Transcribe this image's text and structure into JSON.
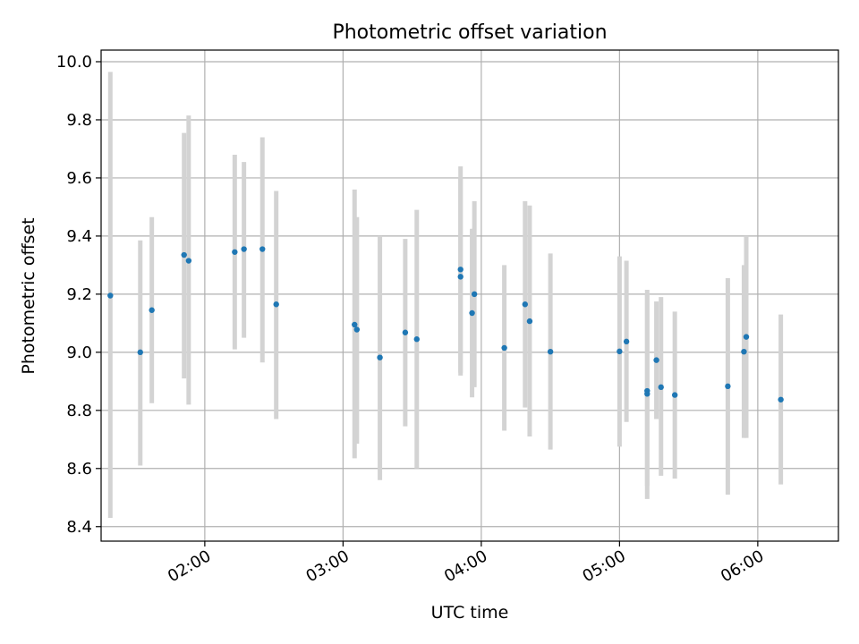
{
  "chart_data": {
    "type": "scatter",
    "title": "Photometric offset variation",
    "xlabel": "UTC time",
    "ylabel": "Photometric offset",
    "xlim": [
      "01:15",
      "06:35"
    ],
    "ylim": [
      8.35,
      10.04
    ],
    "x_ticks": [
      "02:00",
      "03:00",
      "04:00",
      "05:00",
      "06:00"
    ],
    "y_ticks": [
      "8.4",
      "8.6",
      "8.8",
      "9.0",
      "9.2",
      "9.4",
      "9.6",
      "9.8",
      "10.0"
    ],
    "grid": true,
    "point_color": "#1f77b4",
    "errorbar_color": "#d3d3d3",
    "points": [
      {
        "x": "01:19",
        "y": 9.195,
        "lo": 8.43,
        "hi": 9.965
      },
      {
        "x": "01:32",
        "y": 9.0,
        "lo": 8.61,
        "hi": 9.385
      },
      {
        "x": "01:37",
        "y": 9.145,
        "lo": 8.825,
        "hi": 9.465
      },
      {
        "x": "01:51",
        "y": 9.335,
        "lo": 8.91,
        "hi": 9.755
      },
      {
        "x": "01:53",
        "y": 9.315,
        "lo": 8.82,
        "hi": 9.815
      },
      {
        "x": "02:13",
        "y": 9.345,
        "lo": 9.01,
        "hi": 9.68
      },
      {
        "x": "02:17",
        "y": 9.355,
        "lo": 9.05,
        "hi": 9.655
      },
      {
        "x": "02:25",
        "y": 9.355,
        "lo": 8.965,
        "hi": 9.74
      },
      {
        "x": "02:31",
        "y": 9.165,
        "lo": 8.77,
        "hi": 9.555
      },
      {
        "x": "03:05",
        "y": 9.095,
        "lo": 8.635,
        "hi": 9.56
      },
      {
        "x": "03:06",
        "y": 9.078,
        "lo": 8.685,
        "hi": 9.465
      },
      {
        "x": "03:16",
        "y": 8.982,
        "lo": 8.56,
        "hi": 9.4
      },
      {
        "x": "03:27",
        "y": 9.068,
        "lo": 8.745,
        "hi": 9.39
      },
      {
        "x": "03:32",
        "y": 9.045,
        "lo": 8.6,
        "hi": 9.49
      },
      {
        "x": "03:51",
        "y": 9.285,
        "lo": 8.93,
        "hi": 9.64
      },
      {
        "x": "03:51",
        "y": 9.26,
        "lo": 8.92,
        "hi": 9.6
      },
      {
        "x": "03:56",
        "y": 9.135,
        "lo": 8.845,
        "hi": 9.425
      },
      {
        "x": "03:57",
        "y": 9.2,
        "lo": 8.88,
        "hi": 9.52
      },
      {
        "x": "04:10",
        "y": 9.015,
        "lo": 8.73,
        "hi": 9.3
      },
      {
        "x": "04:19",
        "y": 9.165,
        "lo": 8.81,
        "hi": 9.52
      },
      {
        "x": "04:21",
        "y": 9.107,
        "lo": 8.71,
        "hi": 9.505
      },
      {
        "x": "04:30",
        "y": 9.002,
        "lo": 8.665,
        "hi": 9.34
      },
      {
        "x": "05:00",
        "y": 9.003,
        "lo": 8.675,
        "hi": 9.33
      },
      {
        "x": "05:03",
        "y": 9.037,
        "lo": 8.76,
        "hi": 9.315
      },
      {
        "x": "05:12",
        "y": 8.867,
        "lo": 8.54,
        "hi": 9.215
      },
      {
        "x": "05:12",
        "y": 8.857,
        "lo": 8.495,
        "hi": 9.2
      },
      {
        "x": "05:16",
        "y": 8.973,
        "lo": 8.77,
        "hi": 9.175
      },
      {
        "x": "05:18",
        "y": 8.88,
        "lo": 8.575,
        "hi": 9.19
      },
      {
        "x": "05:24",
        "y": 8.853,
        "lo": 8.565,
        "hi": 9.14
      },
      {
        "x": "05:47",
        "y": 8.883,
        "lo": 8.51,
        "hi": 9.255
      },
      {
        "x": "05:54",
        "y": 9.002,
        "lo": 8.705,
        "hi": 9.3
      },
      {
        "x": "05:55",
        "y": 9.053,
        "lo": 8.705,
        "hi": 9.4
      },
      {
        "x": "06:10",
        "y": 8.837,
        "lo": 8.545,
        "hi": 9.13
      }
    ]
  }
}
